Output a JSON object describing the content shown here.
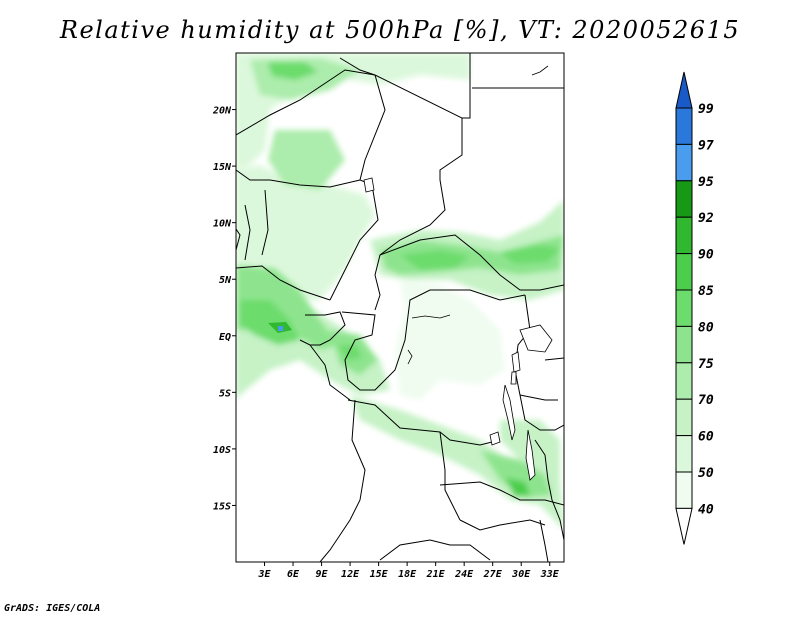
{
  "title": "Relative humidity at 500hPa [%], VT: 2020052615",
  "footer": "GrADS: IGES/COLA",
  "map": {
    "lon_range": [
      0,
      34.5
    ],
    "lat_range": [
      -20,
      25
    ],
    "lon_ticks": [
      {
        "value": 3,
        "label": "3E"
      },
      {
        "value": 6,
        "label": "6E"
      },
      {
        "value": 9,
        "label": "9E"
      },
      {
        "value": 12,
        "label": "12E"
      },
      {
        "value": 15,
        "label": "15E"
      },
      {
        "value": 18,
        "label": "18E"
      },
      {
        "value": 21,
        "label": "21E"
      },
      {
        "value": 24,
        "label": "24E"
      },
      {
        "value": 27,
        "label": "27E"
      },
      {
        "value": 30,
        "label": "30E"
      },
      {
        "value": 33,
        "label": "33E"
      }
    ],
    "lat_ticks": [
      {
        "value": 20,
        "label": "20N"
      },
      {
        "value": 15,
        "label": "15N"
      },
      {
        "value": 10,
        "label": "10N"
      },
      {
        "value": 5,
        "label": "5N"
      },
      {
        "value": 0,
        "label": "EQ"
      },
      {
        "value": -5,
        "label": "5S"
      },
      {
        "value": -10,
        "label": "10S"
      },
      {
        "value": -15,
        "label": "15S"
      }
    ]
  },
  "colorbar": {
    "levels": [
      "40",
      "50",
      "60",
      "70",
      "75",
      "80",
      "85",
      "90",
      "92",
      "95",
      "97",
      "99"
    ],
    "colors": {
      "b40_50": "#f0fcf0",
      "b50_60": "#dcf8dc",
      "b60_70": "#c6f2c6",
      "b70_75": "#acecac",
      "b75_80": "#8ee48e",
      "b80_85": "#6cdc6c",
      "b85_90": "#4cce4c",
      "b90_92": "#30b830",
      "b92_95": "#169a16",
      "b95_97": "#4a9cee",
      "b97_99": "#2a78dc",
      "above_99": "#1a5ac8",
      "below_40": "#ffffff"
    }
  }
}
